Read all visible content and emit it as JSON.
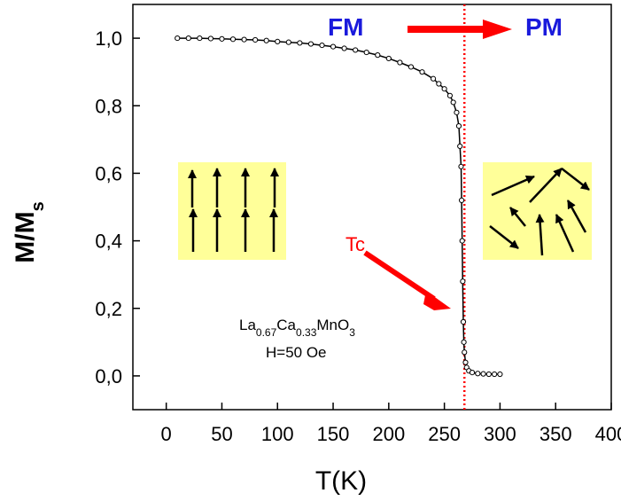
{
  "chart_data": {
    "type": "scatter",
    "xlabel": "T(K)",
    "ylabel": {
      "main": "M/M",
      "sub": "s"
    },
    "xlim": [
      -30,
      400
    ],
    "ylim": [
      -0.1,
      1.1
    ],
    "xticks": [
      0,
      50,
      100,
      150,
      200,
      250,
      300,
      350,
      400
    ],
    "xtick_labels": [
      "0",
      "50",
      "100",
      "150",
      "200",
      "250",
      "300",
      "350",
      "400"
    ],
    "yticks": [
      0.0,
      0.2,
      0.4,
      0.6,
      0.8,
      1.0
    ],
    "ytick_labels": [
      "0,0",
      "0,2",
      "0,4",
      "0,6",
      "0,8",
      "1,0"
    ],
    "grid": false,
    "series": [
      {
        "marker": "open-circle",
        "line": true,
        "color": "#000000",
        "x": [
          10,
          20,
          30,
          40,
          50,
          60,
          70,
          80,
          90,
          100,
          110,
          120,
          130,
          140,
          150,
          160,
          170,
          180,
          190,
          200,
          210,
          220,
          230,
          240,
          245,
          250,
          255,
          258,
          261,
          263,
          264,
          265,
          265.5,
          266,
          266.5,
          267,
          267.5,
          268,
          269,
          270,
          272,
          275,
          280,
          285,
          290,
          295,
          300
        ],
        "y": [
          1.0,
          1.0,
          1.0,
          0.999,
          0.998,
          0.997,
          0.996,
          0.995,
          0.993,
          0.99,
          0.988,
          0.986,
          0.983,
          0.979,
          0.975,
          0.97,
          0.965,
          0.958,
          0.95,
          0.94,
          0.928,
          0.915,
          0.9,
          0.88,
          0.865,
          0.85,
          0.83,
          0.81,
          0.78,
          0.74,
          0.68,
          0.62,
          0.52,
          0.4,
          0.28,
          0.16,
          0.1,
          0.07,
          0.04,
          0.025,
          0.015,
          0.01,
          0.007,
          0.006,
          0.005,
          0.005,
          0.005
        ]
      }
    ],
    "tc_line": {
      "x": 268,
      "color": "#ff0000",
      "style": "dotted"
    },
    "labels": {
      "fm": "FM",
      "pm": "PM",
      "tc": "Tc",
      "compound": {
        "la": "La",
        "la_sub": "0.67",
        "ca": "Ca",
        "ca_sub": "0.33",
        "mn": "MnO",
        "o_sub": "3"
      },
      "field": "H=50 Oe"
    },
    "colors": {
      "phase_text": "#1a1adc",
      "arrow": "#ff0000",
      "inset_bg": "#ffff99",
      "spin_arrow": "#000000"
    }
  }
}
